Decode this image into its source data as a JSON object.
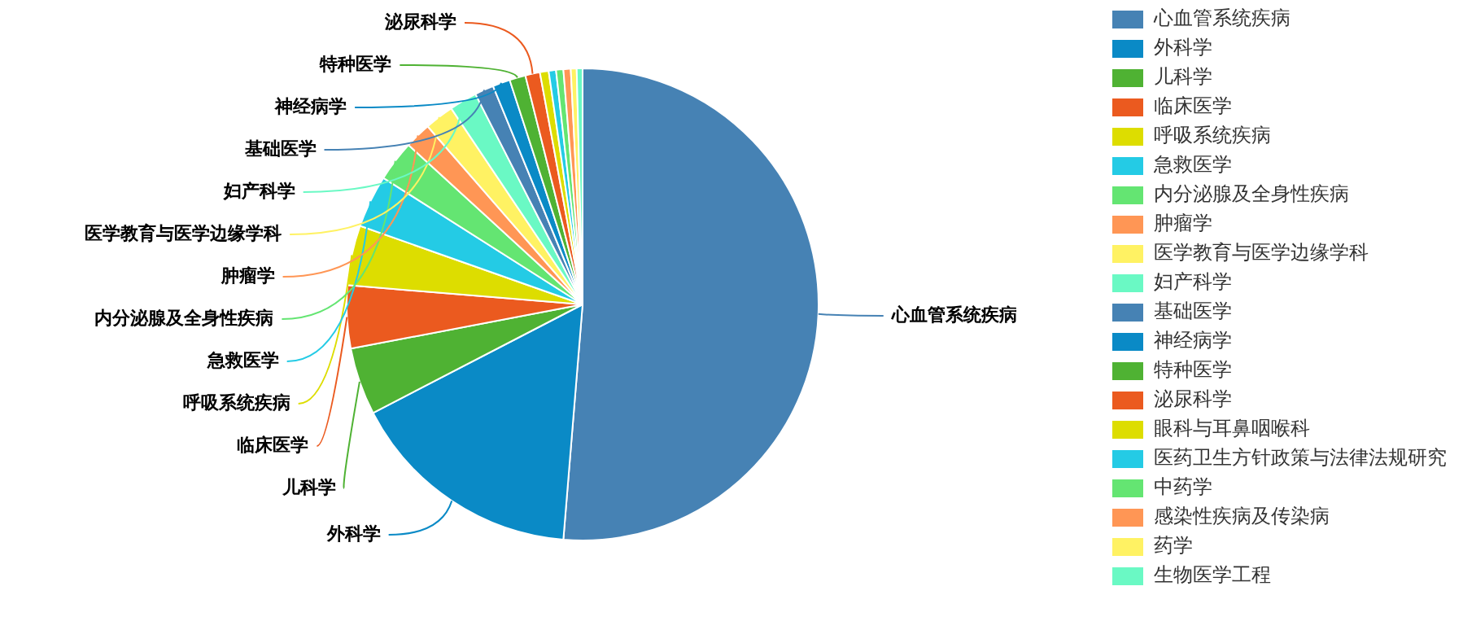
{
  "chart_data": {
    "type": "pie",
    "categories": [
      "心血管系统疾病",
      "外科学",
      "儿科学",
      "临床医学",
      "呼吸系统疾病",
      "急救医学",
      "内分泌腺及全身性疾病",
      "肿瘤学",
      "医学教育与医学边缘学科",
      "妇产科学",
      "基础医学",
      "神经病学",
      "特种医学",
      "泌尿科学",
      "眼科与耳鼻咽喉科",
      "医药卫生方针政策与法律法规研究",
      "中药学",
      "感染性疾病及传染病",
      "药学",
      "生物医学工程"
    ],
    "values": [
      51.3,
      16.1,
      4.6,
      4.3,
      4.1,
      3.6,
      2.8,
      1.8,
      2.0,
      1.9,
      1.3,
      1.2,
      1.1,
      1.0,
      0.6,
      0.5,
      0.5,
      0.5,
      0.4,
      0.4
    ],
    "colors": [
      "#4682b4",
      "#0a8ac6",
      "#4fb233",
      "#eb5a1f",
      "#dddd00",
      "#24cbe5",
      "#64e572",
      "#ff9655",
      "#fff263",
      "#6af9c4",
      "#4682b4",
      "#0a8ac6",
      "#4fb233",
      "#eb5a1f",
      "#dddd00",
      "#24cbe5",
      "#64e572",
      "#ff9655",
      "#fff263",
      "#6af9c4"
    ],
    "legend": "right"
  }
}
